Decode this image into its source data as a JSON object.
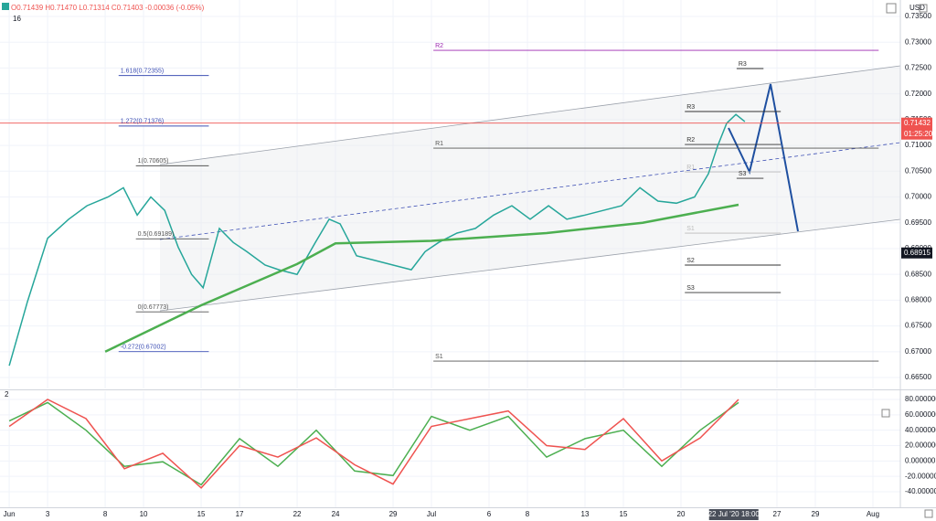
{
  "header": {
    "symbol_interval": "16",
    "ohlc": "O0.71439 H0.71470 L0.71314 C0.71403 -0.00036 (-0.05%)",
    "currency": "USD",
    "osc_label": "2"
  },
  "chart_data": [
    {
      "type": "line",
      "x": [
        0,
        0.95,
        2,
        3.1,
        4.05,
        5.15,
        5.95,
        6.67,
        7.38,
        8.1,
        8.8,
        9.5,
        10.1,
        10.95,
        11.67,
        12.38,
        13.33,
        14.05,
        15,
        15.95,
        16.67,
        17.24,
        18.1,
        19.05,
        20,
        20.95,
        21.67,
        22.38,
        23.33,
        24.29,
        25.24,
        26.19,
        27.14,
        28.1,
        29.05,
        30,
        30.95,
        31.9,
        32.86,
        33.8,
        34.76,
        35.71,
        36.43,
        36.9,
        37.38,
        37.86,
        38.33
      ],
      "series": [
        {
          "color": "#26a69a",
          "values": [
            0.6673,
            0.6797,
            0.692,
            0.6957,
            0.6983,
            0.7,
            0.7018,
            0.6965,
            0.7,
            0.6974,
            0.6903,
            0.685,
            0.6824,
            0.6939,
            0.6912,
            0.6894,
            0.6868,
            0.6859,
            0.685,
            0.6912,
            0.6957,
            0.6948,
            0.6886,
            0.6877,
            0.6868,
            0.6859,
            0.6894,
            0.6912,
            0.693,
            0.6939,
            0.6965,
            0.6983,
            0.6957,
            0.6983,
            0.6957,
            0.6965,
            0.6974,
            0.6983,
            0.7018,
            0.6992,
            0.6988,
            0.7,
            0.7045,
            0.7098,
            0.7143,
            0.716,
            0.7146
          ]
        },
        {
          "color": "#4caf50",
          "x": [
            5,
            10,
            15,
            17,
            22,
            28,
            33,
            38
          ],
          "values": [
            0.67,
            0.679,
            0.687,
            0.691,
            0.6915,
            0.693,
            0.695,
            0.6985
          ]
        }
      ],
      "xlim": [
        -0.48,
        46.43
      ],
      "xticks": [
        {
          "value": 0,
          "label": "Jun"
        },
        {
          "value": 2,
          "label": "3"
        },
        {
          "value": 5,
          "label": "8"
        },
        {
          "value": 7,
          "label": "10"
        },
        {
          "value": 10,
          "label": "15"
        },
        {
          "value": 12,
          "label": "17"
        },
        {
          "value": 15,
          "label": "22"
        },
        {
          "value": 17,
          "label": "24"
        },
        {
          "value": 20,
          "label": "29"
        },
        {
          "value": 22,
          "label": "Jul"
        },
        {
          "value": 25,
          "label": "6"
        },
        {
          "value": 27,
          "label": "8"
        },
        {
          "value": 30,
          "label": "13"
        },
        {
          "value": 32,
          "label": "15"
        },
        {
          "value": 35,
          "label": "20"
        },
        {
          "value": 40,
          "label": "27"
        },
        {
          "value": 42,
          "label": "29"
        },
        {
          "value": 45,
          "label": "Aug"
        }
      ],
      "crosshair": {
        "value": 37.75,
        "label": "22 Jul '20  18:00"
      },
      "ylim": [
        0.66288,
        0.73819
      ],
      "yticks": [
        {
          "value": 0.665,
          "label": "0.66500"
        },
        {
          "value": 0.67,
          "label": "0.67000"
        },
        {
          "value": 0.675,
          "label": "0.67500"
        },
        {
          "value": 0.68,
          "label": "0.68000"
        },
        {
          "value": 0.685,
          "label": "0.68500"
        },
        {
          "value": 0.69,
          "label": "0.69000"
        },
        {
          "value": 0.695,
          "label": "0.69500"
        },
        {
          "value": 0.7,
          "label": "0.70000"
        },
        {
          "value": 0.705,
          "label": "0.70500"
        },
        {
          "value": 0.71,
          "label": "0.71000"
        },
        {
          "value": 0.715,
          "label": "0.71500"
        },
        {
          "value": 0.72,
          "label": "0.72000"
        },
        {
          "value": 0.725,
          "label": "0.72500"
        },
        {
          "value": 0.73,
          "label": "0.73000"
        },
        {
          "value": 0.735,
          "label": "0.73500"
        }
      ],
      "grid": true,
      "annotations": [
        {
          "text": "R2",
          "level": 0.72844,
          "x0": 22.1,
          "x1": 45.3,
          "color": "#9c27b0"
        },
        {
          "text": "R1",
          "level": 0.70948,
          "x0": 22.1,
          "x1": 45.3,
          "color": "#555555"
        },
        {
          "text": "S1",
          "level": 0.66819,
          "x0": 22.1,
          "x1": 45.3,
          "color": "#555555"
        },
        {
          "text": "1.618(0.72355)",
          "level": 0.72355,
          "x0": 5.7,
          "x1": 10.4,
          "color": "#3f51b5"
        },
        {
          "text": "1.272(0.71376)",
          "level": 0.71376,
          "x0": 5.7,
          "x1": 10.4,
          "color": "#3f51b5"
        },
        {
          "text": "1(0.70605)",
          "level": 0.70605,
          "x0": 6.6,
          "x1": 10.4,
          "color": "#555555"
        },
        {
          "text": "0.5(0.69189)",
          "level": 0.69189,
          "x0": 6.6,
          "x1": 10.4,
          "color": "#555555"
        },
        {
          "text": "0(0.67773)",
          "level": 0.67773,
          "x0": 6.6,
          "x1": 10.4,
          "color": "#555555"
        },
        {
          "text": "-0.272(0.67002)",
          "level": 0.67002,
          "x0": 5.7,
          "x1": 10.4,
          "color": "#3f51b5"
        },
        {
          "text": "R3",
          "level": 0.7249,
          "x0": 37.9,
          "x1": 39.3,
          "color": "#333333"
        },
        {
          "text": "R3",
          "level": 0.71657,
          "x0": 35.2,
          "x1": 40.2,
          "color": "#333333"
        },
        {
          "text": "R2",
          "level": 0.71019,
          "x0": 35.2,
          "x1": 40.2,
          "color": "#333333"
        },
        {
          "text": "R1",
          "level": 0.70487,
          "x0": 35.2,
          "x1": 40.2,
          "color": "#bbbbbb"
        },
        {
          "text": "S3",
          "level": 0.70363,
          "x0": 37.9,
          "x1": 39.3,
          "color": "#333333"
        },
        {
          "text": "S1",
          "level": 0.693,
          "x0": 35.2,
          "x1": 40.2,
          "color": "#bbbbbb"
        },
        {
          "text": "S2",
          "level": 0.6868,
          "x0": 35.2,
          "x1": 40.2,
          "color": "#333333"
        },
        {
          "text": "S3",
          "level": 0.68148,
          "x0": 35.2,
          "x1": 40.2,
          "color": "#333333"
        }
      ],
      "price_labels": [
        {
          "value": 0.71432,
          "label": "0.71432",
          "sub": "01:25:20",
          "color": "#ef5350",
          "line": true
        },
        {
          "value": 0.68915,
          "label": "0.68915",
          "color": "#131722",
          "line": false
        }
      ]
    },
    {
      "type": "line",
      "x": [
        0,
        2,
        4,
        6,
        8,
        10,
        12,
        14,
        16,
        18,
        20,
        22,
        24,
        26,
        28,
        30,
        32,
        34,
        36,
        38
      ],
      "series": [
        {
          "color": "#4caf50",
          "values": [
            52,
            76,
            40,
            -7,
            -1,
            -31,
            29,
            -7,
            40,
            -13,
            -19,
            58,
            40,
            58,
            5,
            29,
            40,
            -7,
            40,
            76
          ]
        },
        {
          "color": "#ef5350",
          "values": [
            45,
            80,
            55,
            -10,
            10,
            -35,
            20,
            5,
            30,
            -5,
            -30,
            45,
            55,
            65,
            20,
            15,
            55,
            0,
            30,
            80
          ]
        }
      ],
      "xlim": [
        -0.48,
        46.43
      ],
      "ylim": [
        -60.2,
        90.7
      ],
      "yticks": [
        {
          "value": -40,
          "label": "-40.000000"
        },
        {
          "value": -20,
          "label": "-20.000000"
        },
        {
          "value": 0,
          "label": "0.000000"
        },
        {
          "value": 20,
          "label": "20.000000"
        },
        {
          "value": 40,
          "label": "40.000000"
        },
        {
          "value": 60,
          "label": "60.000000"
        },
        {
          "value": 80,
          "label": "80.000000"
        }
      ],
      "grid": true
    }
  ]
}
